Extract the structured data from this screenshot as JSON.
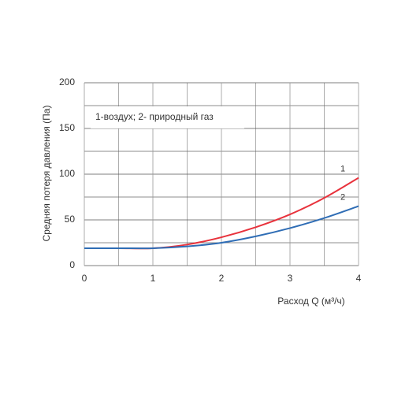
{
  "chart_data": {
    "type": "line",
    "ylabel": "Средняя потеря давления (Па)",
    "xlabel": "Расход Q (м³/ч)",
    "annotation": "1-воздух; 2- природный газ",
    "x": [
      0,
      0.5,
      1,
      1.5,
      2,
      2.5,
      3,
      3.5,
      4
    ],
    "series": [
      {
        "name": "1",
        "color": "#e8323c",
        "values": [
          19,
          19,
          19,
          23,
          31,
          42,
          56,
          74,
          96
        ]
      },
      {
        "name": "2",
        "color": "#2f6db5",
        "values": [
          19,
          19,
          19,
          21,
          25,
          32,
          41,
          52,
          65
        ]
      }
    ],
    "xlim": [
      0,
      4
    ],
    "xticks": [
      0,
      1,
      2,
      3,
      4
    ],
    "ylim": [
      0,
      200
    ],
    "yticks": [
      0,
      50,
      100,
      150,
      200
    ],
    "grid": true
  }
}
